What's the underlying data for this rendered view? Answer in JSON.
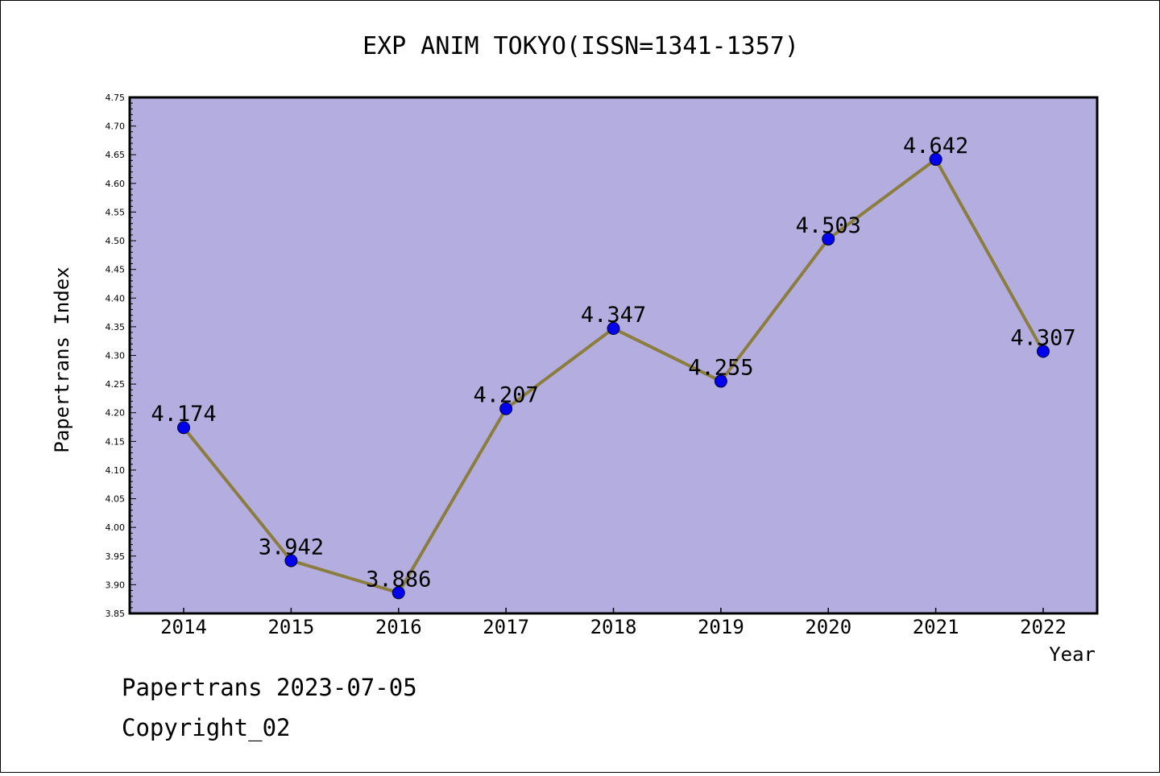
{
  "chart_data": {
    "type": "line",
    "title": "EXP ANIM TOKYO(ISSN=1341-1357)",
    "xlabel": "Year",
    "ylabel": "Papertrans Index",
    "x": [
      "2014",
      "2015",
      "2016",
      "2017",
      "2018",
      "2019",
      "2020",
      "2021",
      "2022"
    ],
    "series": [
      {
        "values": [
          4.174,
          3.942,
          3.886,
          4.207,
          4.347,
          4.255,
          4.503,
          4.642,
          4.307
        ],
        "data_labels": [
          "4.174",
          "3.942",
          "3.886",
          "4.207",
          "4.347",
          "4.255",
          "4.503",
          "4.642",
          "4.307"
        ],
        "line_color": "#8b7d3e",
        "marker_color": "#0000ee"
      }
    ],
    "ylim": [
      3.85,
      4.75
    ],
    "yticks": [
      "3.85",
      "3.90",
      "3.95",
      "4.00",
      "4.05",
      "4.10",
      "4.15",
      "4.20",
      "4.25",
      "4.30",
      "4.35",
      "4.40",
      "4.45",
      "4.50",
      "4.55",
      "4.60",
      "4.65",
      "4.70",
      "4.75"
    ],
    "plot_background": "#b4aee0",
    "grid": false,
    "legend": "none"
  },
  "footer": {
    "line1": "Papertrans 2023-07-05",
    "line2": "Copyright_02"
  }
}
